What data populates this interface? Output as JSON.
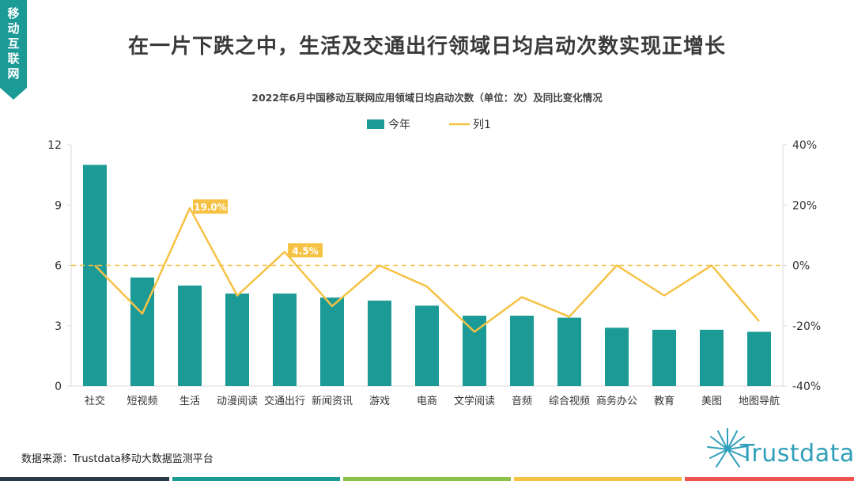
{
  "corner": {
    "label": "移动互联网"
  },
  "page": {
    "title": "在一片下跌之中，生活及交通出行领域日均启动次数实现正增长",
    "source": "数据来源：Trustdata移动大数据监测平台",
    "logo_text": "Trustdata"
  },
  "colors": {
    "bar": "#1c9a96",
    "line": "#f6c244",
    "label_bg": "#f6c244",
    "strip": [
      "#2b3a4a",
      "#1c9a96",
      "#8bc34a",
      "#f6c244",
      "#ef5350"
    ]
  },
  "chart_data": {
    "type": "bar",
    "title": "2022年6月中国移动互联网应用领域日均启动次数（单位：次）及同比变化情况",
    "categories": [
      "社交",
      "短视频",
      "生活",
      "动漫阅读",
      "交通出行",
      "新闻资讯",
      "游戏",
      "电商",
      "文学阅读",
      "音频",
      "综合视频",
      "商务办公",
      "教育",
      "美图",
      "地图导航"
    ],
    "series": [
      {
        "name": "今年",
        "type": "bar",
        "axis": "left",
        "values": [
          11.0,
          5.4,
          5.0,
          4.6,
          4.6,
          4.4,
          4.25,
          4.0,
          3.5,
          3.5,
          3.4,
          2.9,
          2.8,
          2.8,
          2.7
        ]
      },
      {
        "name": "列1",
        "type": "line",
        "axis": "right",
        "values": [
          0.0,
          -16.0,
          19.0,
          -10.0,
          4.5,
          -13.5,
          0.0,
          -7.0,
          -22.0,
          -10.5,
          -17.0,
          0.0,
          -10.0,
          0.0,
          -18.5
        ]
      }
    ],
    "data_labels": [
      {
        "category": "生活",
        "text": "19.0%"
      },
      {
        "category": "交通出行",
        "text": "4.5%"
      }
    ],
    "ylim_left": [
      0,
      12
    ],
    "yticks_left": [
      "0",
      "3",
      "6",
      "9",
      "12"
    ],
    "ylim_right": [
      -40,
      40
    ],
    "yticks_right": [
      "-40%",
      "-20%",
      "0%",
      "20%",
      "40%"
    ],
    "reference_line": {
      "axis": "right",
      "value": 0
    },
    "legend": {
      "position": "top",
      "entries": [
        "今年",
        "列1"
      ]
    }
  }
}
